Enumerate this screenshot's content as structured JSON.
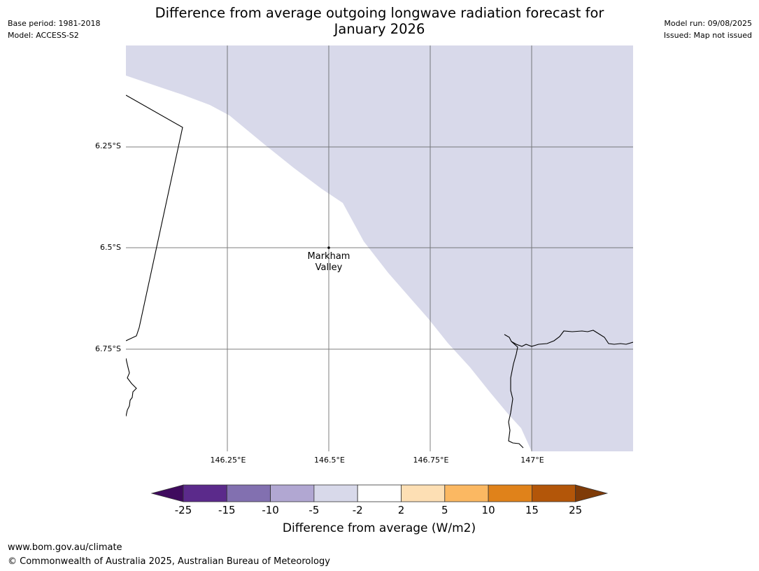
{
  "header": {
    "left_line1": "Base period: 1981-2018",
    "left_line2": "Model: ACCESS-S2",
    "title_line1": "Difference from average outgoing longwave radiation forecast for",
    "title_line2": "January 2026",
    "right_line1": "Model run: 09/08/2025",
    "right_line2": "Issued: Map not issued"
  },
  "map": {
    "latitude_labels": [
      "6.25°S",
      "6.5°S",
      "6.75°S"
    ],
    "longitude_labels": [
      "146.25°E",
      "146.5°E",
      "146.75°E",
      "147°E"
    ],
    "place_line1": "Markham",
    "place_line2": "Valley",
    "shaded_category": "-5 to -2",
    "shaded_color": "#d8d9ea",
    "background_category": "-2 to 2",
    "background_color": "#ffffff"
  },
  "colorbar": {
    "tick_labels": [
      "-25",
      "-15",
      "-10",
      "-5",
      "-2",
      "2",
      "5",
      "10",
      "15",
      "25"
    ],
    "colors": [
      "#3f0a5e",
      "#5b2a8b",
      "#8270b0",
      "#b1a7d2",
      "#d8d9ea",
      "#ffffff",
      "#fddfb4",
      "#fbb862",
      "#e0821a",
      "#b35609",
      "#7f3b08"
    ],
    "title": "Difference from average (W/m2)"
  },
  "footer": {
    "url": "www.bom.gov.au/climate",
    "copyright": "© Commonwealth of Australia 2025, Australian Bureau of Meteorology"
  }
}
